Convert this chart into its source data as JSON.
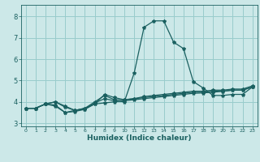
{
  "xlabel": "Humidex (Indice chaleur)",
  "background_color": "#cce8e8",
  "grid_color": "#99cccc",
  "line_color": "#1a6060",
  "xlim": [
    -0.5,
    23.5
  ],
  "ylim": [
    2.85,
    8.55
  ],
  "yticks": [
    3,
    4,
    5,
    6,
    7,
    8
  ],
  "xticks": [
    0,
    1,
    2,
    3,
    4,
    5,
    6,
    7,
    8,
    9,
    10,
    11,
    12,
    13,
    14,
    15,
    16,
    17,
    18,
    19,
    20,
    21,
    22,
    23
  ],
  "curves": [
    [
      3.7,
      3.7,
      3.9,
      3.8,
      3.5,
      3.6,
      3.7,
      3.9,
      4.35,
      4.2,
      4.1,
      4.15,
      4.2,
      4.25,
      4.3,
      4.35,
      4.4,
      4.45,
      4.45,
      4.5,
      4.5,
      4.55,
      4.55,
      4.7
    ],
    [
      3.7,
      3.7,
      3.9,
      4.0,
      3.8,
      3.6,
      3.65,
      3.95,
      4.15,
      4.05,
      4.0,
      5.35,
      7.5,
      7.8,
      7.8,
      6.8,
      6.5,
      4.95,
      4.65,
      4.3,
      4.3,
      4.35,
      4.35,
      4.7
    ],
    [
      3.7,
      3.7,
      3.9,
      3.85,
      3.5,
      3.55,
      3.65,
      3.9,
      3.95,
      4.0,
      4.05,
      4.1,
      4.15,
      4.2,
      4.25,
      4.3,
      4.35,
      4.4,
      4.42,
      4.45,
      4.5,
      4.55,
      4.55,
      4.7
    ],
    [
      3.7,
      3.7,
      3.9,
      4.0,
      3.75,
      3.6,
      3.7,
      4.0,
      4.3,
      4.1,
      4.1,
      4.15,
      4.25,
      4.3,
      4.35,
      4.4,
      4.45,
      4.5,
      4.5,
      4.55,
      4.55,
      4.6,
      4.6,
      4.75
    ]
  ]
}
